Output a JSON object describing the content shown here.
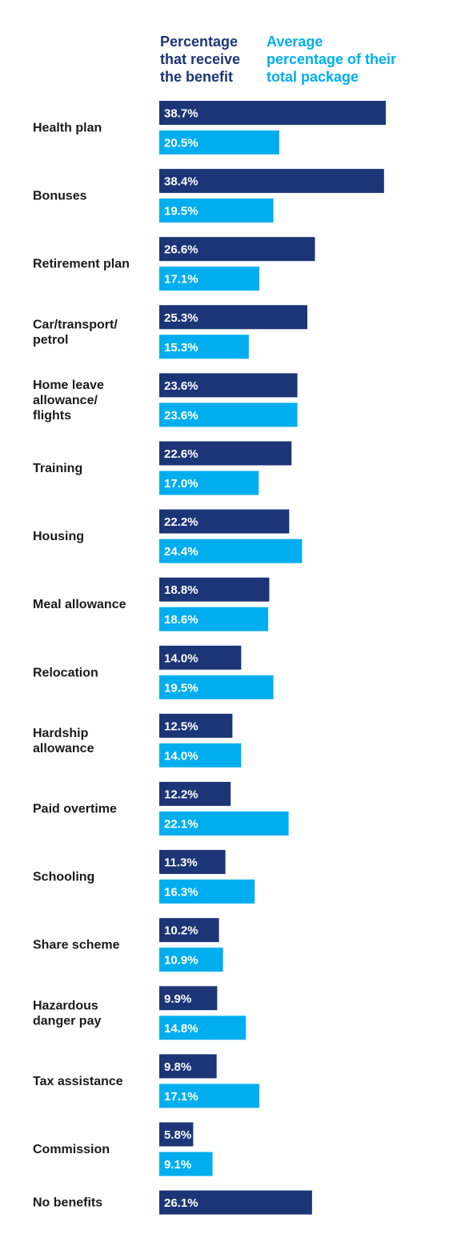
{
  "chart_data": {
    "type": "bar",
    "orientation": "horizontal",
    "colors": {
      "series1": "#1b3577",
      "series2": "#00aeef"
    },
    "series_labels": [
      {
        "name": "Percentage that receive the benefit",
        "lines": [
          "Percentage",
          "that receive",
          "the benefit"
        ]
      },
      {
        "name": "Average percentage of their total package",
        "lines": [
          "Average",
          "percentage of their",
          "total package"
        ]
      }
    ],
    "categories": [
      {
        "label": "Health plan",
        "lines": [
          "Health plan"
        ],
        "values": [
          38.7,
          20.5
        ],
        "labels": [
          "38.7%",
          "20.5%"
        ]
      },
      {
        "label": "Bonuses",
        "lines": [
          "Bonuses"
        ],
        "values": [
          38.4,
          19.5
        ],
        "labels": [
          "38.4%",
          "19.5%"
        ]
      },
      {
        "label": "Retirement plan",
        "lines": [
          "Retirement plan"
        ],
        "values": [
          26.6,
          17.1
        ],
        "labels": [
          "26.6%",
          "17.1%"
        ]
      },
      {
        "label": "Car/transport/ petrol",
        "lines": [
          "Car/transport/",
          "petrol"
        ],
        "values": [
          25.3,
          15.3
        ],
        "labels": [
          "25.3%",
          "15.3%"
        ]
      },
      {
        "label": "Home leave allowance/ flights",
        "lines": [
          "Home leave",
          "allowance/",
          "flights"
        ],
        "values": [
          23.6,
          23.6
        ],
        "labels": [
          "23.6%",
          "23.6%"
        ]
      },
      {
        "label": "Training",
        "lines": [
          "Training"
        ],
        "values": [
          22.6,
          17.0
        ],
        "labels": [
          "22.6%",
          "17.0%"
        ]
      },
      {
        "label": "Housing",
        "lines": [
          "Housing"
        ],
        "values": [
          22.2,
          24.4
        ],
        "labels": [
          "22.2%",
          "24.4%"
        ]
      },
      {
        "label": "Meal allowance",
        "lines": [
          "Meal allowance"
        ],
        "values": [
          18.8,
          18.6
        ],
        "labels": [
          "18.8%",
          "18.6%"
        ]
      },
      {
        "label": "Relocation",
        "lines": [
          "Relocation"
        ],
        "values": [
          14.0,
          19.5
        ],
        "labels": [
          "14.0%",
          "19.5%"
        ]
      },
      {
        "label": "Hardship allowance",
        "lines": [
          "Hardship",
          "allowance"
        ],
        "values": [
          12.5,
          14.0
        ],
        "labels": [
          "12.5%",
          "14.0%"
        ]
      },
      {
        "label": "Paid overtime",
        "lines": [
          "Paid overtime"
        ],
        "values": [
          12.2,
          22.1
        ],
        "labels": [
          "12.2%",
          "22.1%"
        ]
      },
      {
        "label": "Schooling",
        "lines": [
          "Schooling"
        ],
        "values": [
          11.3,
          16.3
        ],
        "labels": [
          "11.3%",
          "16.3%"
        ]
      },
      {
        "label": "Share scheme",
        "lines": [
          "Share scheme"
        ],
        "values": [
          10.2,
          10.9
        ],
        "labels": [
          "10.2%",
          "10.9%"
        ]
      },
      {
        "label": "Hazardous danger pay",
        "lines": [
          "Hazardous",
          "danger pay"
        ],
        "values": [
          9.9,
          14.8
        ],
        "labels": [
          "9.9%",
          "14.8%"
        ]
      },
      {
        "label": "Tax assistance",
        "lines": [
          "Tax assistance"
        ],
        "values": [
          9.8,
          17.1
        ],
        "labels": [
          "9.8%",
          "17.1%"
        ]
      },
      {
        "label": "Commission",
        "lines": [
          "Commission"
        ],
        "values": [
          5.8,
          9.1
        ],
        "labels": [
          "5.8%",
          "9.1%"
        ]
      },
      {
        "label": "No benefits",
        "lines": [
          "No benefits"
        ],
        "values": [
          26.1
        ],
        "labels": [
          "26.1%"
        ]
      }
    ],
    "xlim": [
      0,
      38.7
    ],
    "grid": false,
    "legend_position": "top"
  }
}
